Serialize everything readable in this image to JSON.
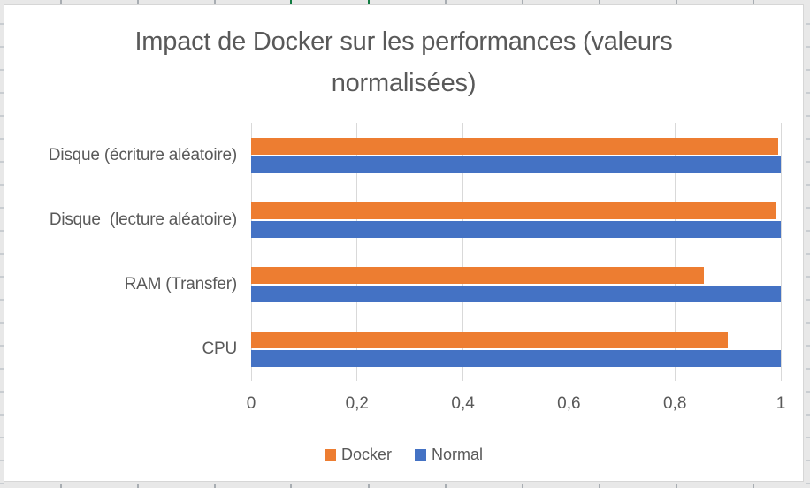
{
  "chart_data": {
    "type": "bar",
    "orientation": "horizontal",
    "title": "Impact de Docker sur les performances (valeurs normalisées)",
    "title_lines": [
      "Impact de Docker sur les performances (valeurs",
      "normalisées)"
    ],
    "categories": [
      "Disque (écriture aléatoire)",
      "Disque  (lecture aléatoire)",
      "RAM (Transfer)",
      "CPU"
    ],
    "series": [
      {
        "name": "Docker",
        "color": "#ED7D31",
        "values": [
          0.995,
          0.99,
          0.855,
          0.9
        ]
      },
      {
        "name": "Normal",
        "color": "#4472C4",
        "values": [
          1.0,
          1.0,
          1.0,
          1.0
        ]
      }
    ],
    "xlabel": "",
    "ylabel": "",
    "xlim": [
      0,
      1
    ],
    "x_ticks": [
      {
        "label": "0",
        "value": 0
      },
      {
        "label": "0,2",
        "value": 0.2
      },
      {
        "label": "0,4",
        "value": 0.4
      },
      {
        "label": "0,6",
        "value": 0.6
      },
      {
        "label": "0,8",
        "value": 0.8
      },
      {
        "label": "1",
        "value": 1
      }
    ],
    "grid": true,
    "legend_position": "bottom",
    "colors": {
      "grid": "#D9D9D9",
      "text": "#595959",
      "chart_border": "#D6D6D6",
      "sheet_accent_green": "#107C41"
    }
  }
}
